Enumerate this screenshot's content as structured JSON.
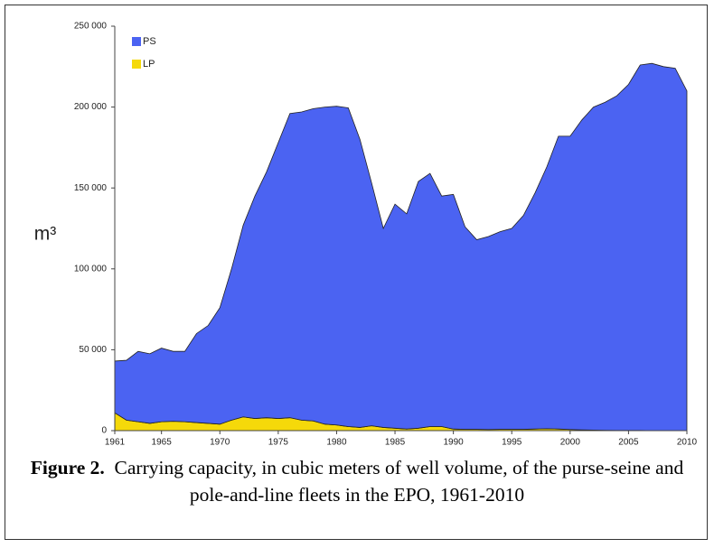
{
  "chart_data": {
    "type": "stacked-area",
    "ylabel": "m³",
    "x": [
      1961,
      1962,
      1963,
      1964,
      1965,
      1966,
      1967,
      1968,
      1969,
      1970,
      1971,
      1972,
      1973,
      1974,
      1975,
      1976,
      1977,
      1978,
      1979,
      1980,
      1981,
      1982,
      1983,
      1984,
      1985,
      1986,
      1987,
      1988,
      1989,
      1990,
      1991,
      1992,
      1993,
      1994,
      1995,
      1996,
      1997,
      1998,
      1999,
      2000,
      2001,
      2002,
      2003,
      2004,
      2005,
      2006,
      2007,
      2008,
      2009,
      2010
    ],
    "series": [
      {
        "name": "LP",
        "color": "#f5d90a",
        "values": [
          11000,
          6500,
          5500,
          4500,
          5500,
          5800,
          5500,
          5000,
          4500,
          4000,
          6500,
          8500,
          7500,
          8000,
          7500,
          8000,
          6500,
          6000,
          4000,
          3500,
          2500,
          2000,
          3000,
          2000,
          1500,
          1000,
          1500,
          2500,
          2500,
          1000,
          800,
          800,
          700,
          800,
          800,
          800,
          1000,
          1200,
          1000,
          700,
          500,
          300,
          200,
          100,
          100,
          100,
          0,
          0,
          0,
          0
        ]
      },
      {
        "name": "PS",
        "color": "#4b63f2",
        "values": [
          32000,
          37000,
          43500,
          43000,
          45500,
          43200,
          43500,
          55000,
          60500,
          72000,
          93500,
          118500,
          137500,
          152000,
          170500,
          188000,
          190500,
          193000,
          196000,
          197000,
          197000,
          178000,
          150000,
          123000,
          138500,
          133000,
          152500,
          156500,
          142500,
          145000,
          125200,
          117200,
          119300,
          122200,
          124200,
          132200,
          146000,
          161800,
          181000,
          181300,
          191500,
          199700,
          202800,
          206900,
          213900,
          225900,
          227000,
          225000,
          224000,
          210000
        ]
      }
    ],
    "legend_order": [
      1,
      0
    ],
    "xlim": [
      1961,
      2010
    ],
    "xticks": [
      1961,
      1965,
      1970,
      1975,
      1980,
      1985,
      1990,
      1995,
      2000,
      2005,
      2010
    ],
    "ylim": [
      0,
      250000
    ],
    "yticks": [
      0,
      {
        "value": 50000,
        "label": "50 000"
      },
      {
        "value": 100000,
        "label": "100 000"
      },
      {
        "value": 150000,
        "label": "150 000"
      },
      {
        "value": 200000,
        "label": "200 000"
      },
      {
        "value": 250000,
        "label": "250 000"
      }
    ]
  },
  "caption": {
    "label": "Figure 2.",
    "text": "Carrying capacity, in cubic meters of well volume, of the purse-seine and pole-and-line fleets in the EPO, 1961-2010"
  }
}
